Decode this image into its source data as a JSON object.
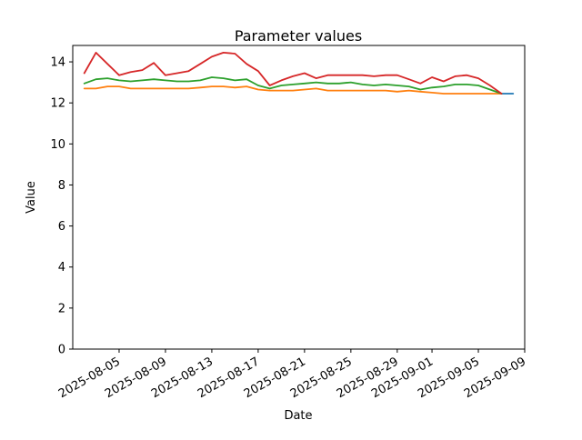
{
  "chart_data": {
    "type": "line",
    "title": "Parameter values",
    "xlabel": "Date",
    "ylabel": "Value",
    "grid": false,
    "legend": null,
    "xlim": [
      "2025-08-01",
      "2025-09-09"
    ],
    "ylim": [
      0,
      14.8
    ],
    "yticks": [
      0,
      2,
      4,
      6,
      8,
      10,
      12,
      14
    ],
    "xticks": [
      "2025-08-05",
      "2025-08-09",
      "2025-08-13",
      "2025-08-17",
      "2025-08-21",
      "2025-08-25",
      "2025-08-29",
      "2025-09-01",
      "2025-09-05",
      "2025-09-09"
    ],
    "x": [
      "2025-08-02",
      "2025-08-03",
      "2025-08-04",
      "2025-08-05",
      "2025-08-06",
      "2025-08-07",
      "2025-08-08",
      "2025-08-09",
      "2025-08-10",
      "2025-08-11",
      "2025-08-12",
      "2025-08-13",
      "2025-08-14",
      "2025-08-15",
      "2025-08-16",
      "2025-08-17",
      "2025-08-18",
      "2025-08-19",
      "2025-08-20",
      "2025-08-21",
      "2025-08-22",
      "2025-08-23",
      "2025-08-24",
      "2025-08-25",
      "2025-08-26",
      "2025-08-27",
      "2025-08-28",
      "2025-08-29",
      "2025-08-30",
      "2025-08-31",
      "2025-09-01",
      "2025-09-02",
      "2025-09-03",
      "2025-09-04",
      "2025-09-05",
      "2025-09-06",
      "2025-09-07"
    ],
    "series": [
      {
        "name": "blue",
        "color": "#1f77b4",
        "x": [
          "2025-09-07",
          "2025-09-08"
        ],
        "values": [
          12.45,
          12.45
        ]
      },
      {
        "name": "orange",
        "color": "#ff7f0e",
        "values": [
          12.7,
          12.7,
          12.8,
          12.8,
          12.7,
          12.7,
          12.7,
          12.7,
          12.7,
          12.7,
          12.75,
          12.8,
          12.8,
          12.75,
          12.8,
          12.65,
          12.6,
          12.6,
          12.6,
          12.65,
          12.7,
          12.6,
          12.6,
          12.6,
          12.6,
          12.6,
          12.6,
          12.55,
          12.6,
          12.55,
          12.5,
          12.45,
          12.45,
          12.45,
          12.45,
          12.45,
          12.45
        ]
      },
      {
        "name": "green",
        "color": "#2ca02c",
        "values": [
          12.95,
          13.15,
          13.2,
          13.1,
          13.05,
          13.1,
          13.15,
          13.1,
          13.05,
          13.05,
          13.1,
          13.25,
          13.2,
          13.1,
          13.15,
          12.85,
          12.7,
          12.85,
          12.9,
          12.95,
          13.0,
          12.95,
          12.95,
          13.0,
          12.9,
          12.85,
          12.9,
          12.85,
          12.8,
          12.65,
          12.75,
          12.8,
          12.9,
          12.9,
          12.85,
          12.65,
          12.45
        ]
      },
      {
        "name": "red",
        "color": "#d62728",
        "values": [
          13.45,
          14.45,
          13.9,
          13.35,
          13.5,
          13.6,
          13.95,
          13.35,
          13.45,
          13.55,
          13.9,
          14.25,
          14.45,
          14.4,
          13.9,
          13.55,
          12.85,
          13.1,
          13.3,
          13.45,
          13.2,
          13.35,
          13.35,
          13.35,
          13.35,
          13.3,
          13.35,
          13.35,
          13.15,
          12.95,
          13.25,
          13.05,
          13.3,
          13.35,
          13.2,
          12.85,
          12.45
        ]
      }
    ]
  }
}
